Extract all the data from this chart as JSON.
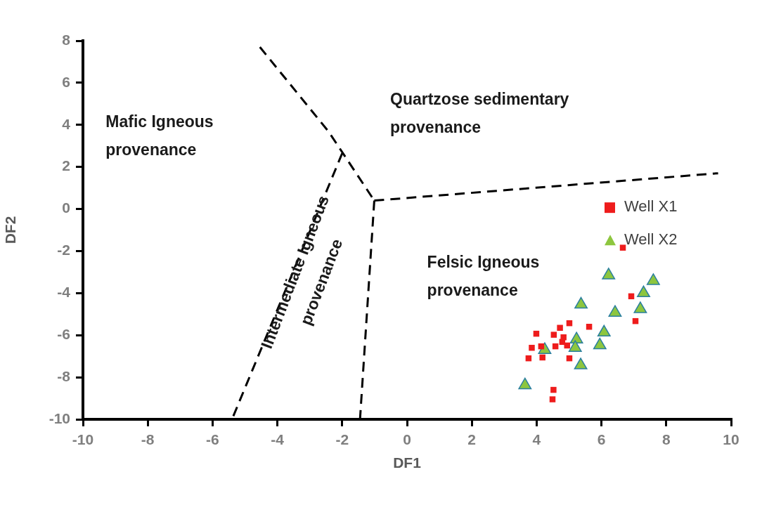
{
  "chart_data": {
    "type": "scatter",
    "xlabel": "DF1",
    "ylabel": "DF2",
    "xlim": [
      -10,
      10
    ],
    "xticks": [
      -10,
      -8,
      -6,
      -4,
      -2,
      0,
      2,
      4,
      6,
      8,
      10
    ],
    "ylim": [
      -10,
      8
    ],
    "yticks": [
      -10,
      -8,
      -6,
      -4,
      -2,
      0,
      2,
      4,
      6,
      8
    ],
    "grid": false,
    "legend": "right",
    "series": [
      {
        "name": "Well X1",
        "color": "#ee1c1c",
        "marker": "square",
        "x": [
          6.66,
          6.92,
          7.05,
          5.62,
          5.01,
          4.72,
          4.53,
          3.99,
          4.79,
          4.58,
          3.85,
          4.14,
          4.94,
          3.75,
          4.18,
          5.01,
          4.52,
          4.49,
          4.83
        ],
        "values": [
          -1.84,
          -4.15,
          -5.33,
          -5.6,
          -5.43,
          -5.65,
          -5.98,
          -5.93,
          -6.32,
          -6.53,
          -6.6,
          -6.53,
          -6.49,
          -7.1,
          -7.06,
          -7.1,
          -8.6,
          -9.05,
          -6.1
        ]
      },
      {
        "name": "Well X2",
        "color": "#8dc63f",
        "marker": "triangle",
        "x": [
          6.22,
          7.6,
          7.3,
          5.37,
          6.42,
          7.2,
          6.08,
          5.95,
          5.23,
          5.19,
          4.25,
          5.36,
          3.64
        ],
        "values": [
          -3.15,
          -3.42,
          -4.0,
          -4.54,
          -4.93,
          -4.76,
          -5.87,
          -6.48,
          -6.2,
          -6.6,
          -6.7,
          -7.43,
          -8.38
        ]
      },
      {
        "type": "line",
        "color": "#000000",
        "marker": "none",
        "line_style": "dashed",
        "x": [
          -4.54,
          -2.42,
          -1.01
        ],
        "values": [
          7.7,
          3.68,
          0.4
        ]
      },
      {
        "type": "line",
        "color": "#000000",
        "marker": "none",
        "line_style": "dashed",
        "x": [
          -1.01,
          9.6
        ],
        "values": [
          0.4,
          1.7
        ]
      },
      {
        "type": "line",
        "color": "#000000",
        "marker": "none",
        "line_style": "dashed",
        "x": [
          -1.01,
          -1.45
        ],
        "values": [
          0.4,
          -10
        ]
      },
      {
        "type": "line",
        "color": "#000000",
        "marker": "none",
        "line_style": "dashed",
        "x": [
          -2.0,
          -5.4
        ],
        "values": [
          2.65,
          -10
        ]
      }
    ],
    "annotations": [
      "Mafic Igneous\nprovenance",
      "Quartzose sedimentary\nprovenance",
      "Intermediate Igneous\nprovenance",
      "Felsic Igneous\nprovenance"
    ]
  }
}
